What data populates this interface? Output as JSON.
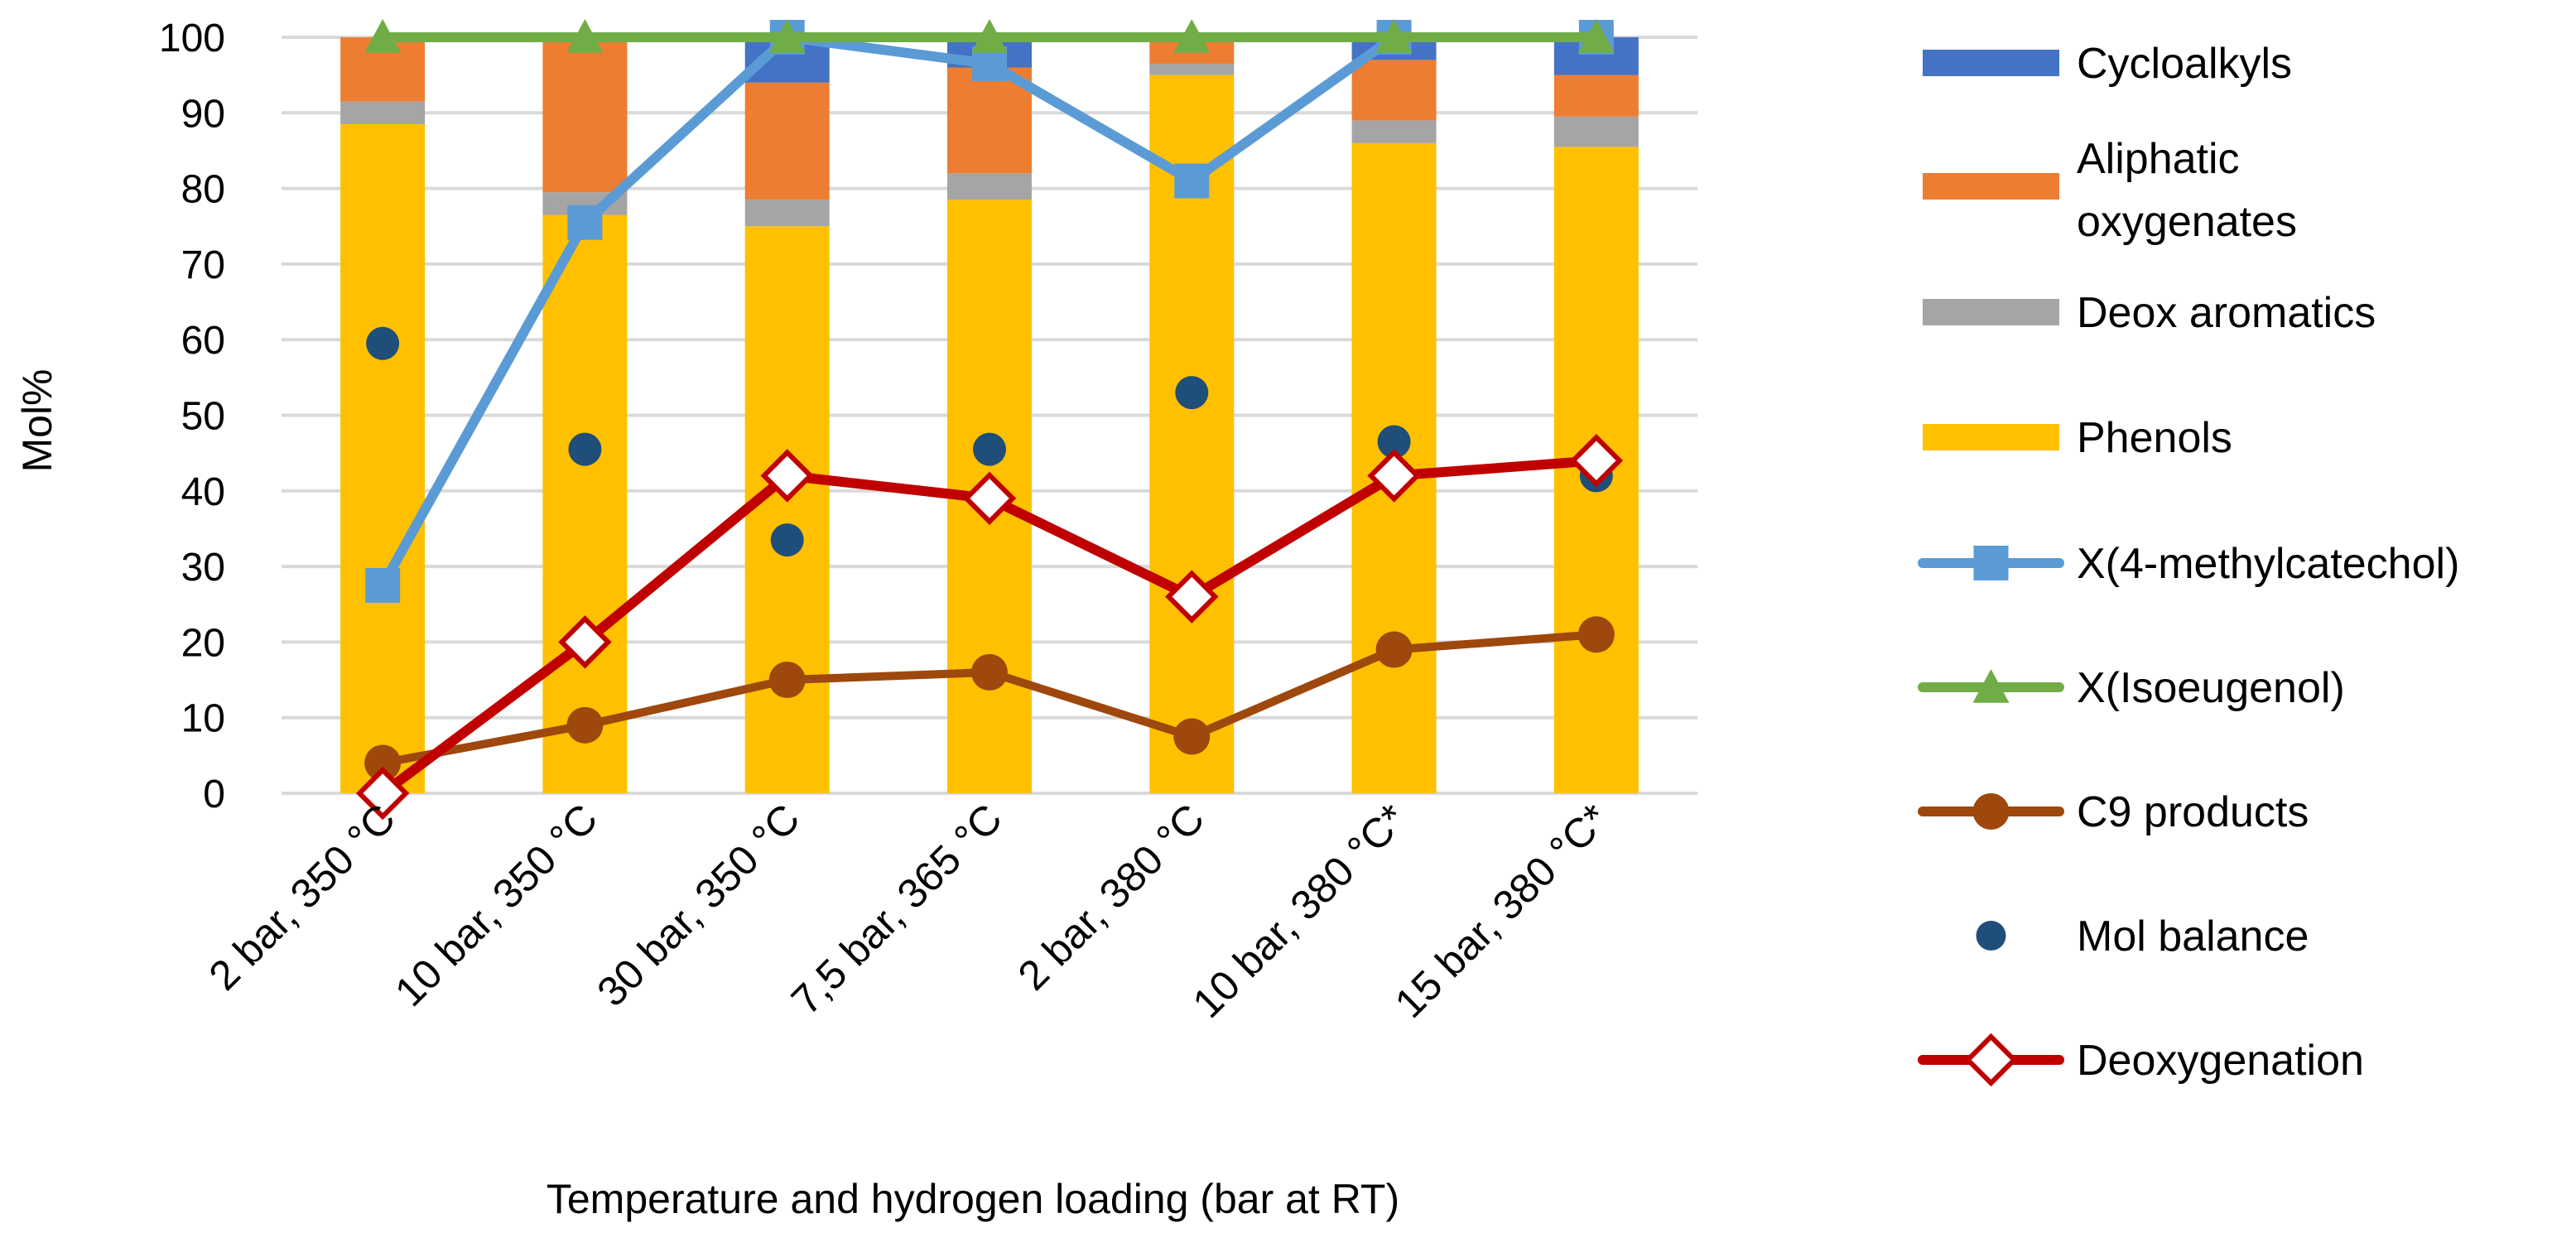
{
  "chart_data": {
    "type": "bar",
    "categories": [
      "2 bar, 350 °C",
      "10 bar, 350 °C",
      "30 bar, 350 °C",
      "7,5 bar, 365 °C",
      "2 bar, 380 °C",
      "10 bar, 380 °C*",
      "15 bar, 380 °C*"
    ],
    "xlabel": "Temperature and hydrogen loading (bar at RT)",
    "ylabel": "Mol%",
    "ylim": [
      0,
      100
    ],
    "yticks": [
      0,
      10,
      20,
      30,
      40,
      50,
      60,
      70,
      80,
      90,
      100
    ],
    "grid": true,
    "legend_position": "right",
    "stacked_series": [
      {
        "name": "Phenols",
        "color": "#FFC000",
        "values": [
          88.5,
          76.5,
          75,
          78.5,
          95,
          86,
          85.5
        ]
      },
      {
        "name": "Deox aromatics",
        "color": "#A5A5A5",
        "values": [
          3,
          3,
          3.5,
          3.5,
          1.5,
          3,
          4
        ]
      },
      {
        "name": "Aliphatic oxygenates",
        "color": "#ED7D31",
        "values": [
          8.5,
          20.5,
          15.5,
          14,
          3.5,
          8,
          5.5
        ]
      },
      {
        "name": "Cycloalkyls",
        "color": "#4472C4",
        "values": [
          0,
          0,
          6,
          4,
          0,
          3,
          5
        ]
      }
    ],
    "line_series": [
      {
        "name": "X(4-methylcatechol)",
        "color": "#5B9BD5",
        "marker": "square",
        "values": [
          27.5,
          75.5,
          100,
          96.5,
          81,
          100,
          100
        ]
      },
      {
        "name": "X(Isoeugenol)",
        "color": "#70AD47",
        "marker": "triangle",
        "values": [
          100,
          100,
          100,
          100,
          100,
          100,
          100
        ]
      },
      {
        "name": "C9 products",
        "color": "#9E480E",
        "marker": "circle",
        "values": [
          4,
          9,
          15,
          16,
          7.5,
          19,
          21
        ]
      },
      {
        "name": "Deoxygenation",
        "color": "#C00000",
        "marker": "diamond",
        "values": [
          0,
          20,
          42,
          39,
          26,
          42,
          44
        ]
      }
    ],
    "scatter_series": [
      {
        "name": "Mol balance",
        "color": "#1F4E79",
        "marker": "circle",
        "values": [
          59.5,
          45.5,
          33.5,
          45.5,
          53,
          46.5,
          42
        ]
      }
    ],
    "legend_order": [
      "Cycloalkyls",
      "Aliphatic oxygenates",
      "Deox aromatics",
      "Phenols",
      "X(4-methylcatechol)",
      "X(Isoeugenol)",
      "C9 products",
      "Mol balance",
      "Deoxygenation"
    ]
  }
}
